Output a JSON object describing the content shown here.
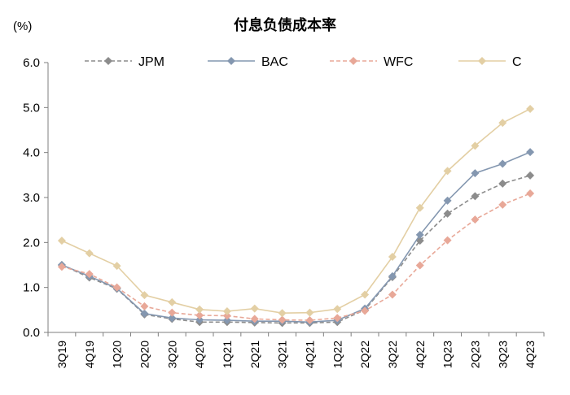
{
  "chart_data": {
    "type": "line",
    "title": "付息负债成本率",
    "unit_label": "(%)",
    "xlabel": "",
    "ylabel": "",
    "ylim": [
      0,
      6
    ],
    "yticks": [
      "0.0",
      "1.0",
      "2.0",
      "3.0",
      "4.0",
      "5.0",
      "6.0"
    ],
    "grid": false,
    "legend_position": "top",
    "categories": [
      "3Q19",
      "4Q19",
      "1Q20",
      "2Q20",
      "3Q20",
      "4Q20",
      "1Q21",
      "2Q21",
      "3Q21",
      "4Q21",
      "1Q22",
      "2Q22",
      "3Q22",
      "4Q22",
      "1Q23",
      "2Q23",
      "3Q23",
      "4Q23"
    ],
    "series": [
      {
        "name": "JPM",
        "color": "#8c8c8c",
        "dash": true,
        "values": [
          1.5,
          1.22,
          0.97,
          0.4,
          0.3,
          0.23,
          0.23,
          0.22,
          0.21,
          0.21,
          0.23,
          0.5,
          1.23,
          2.04,
          2.64,
          3.03,
          3.31,
          3.49
        ]
      },
      {
        "name": "BAC",
        "color": "#8497b0",
        "dash": false,
        "values": [
          1.5,
          1.25,
          0.98,
          0.42,
          0.32,
          0.28,
          0.27,
          0.25,
          0.25,
          0.23,
          0.27,
          0.53,
          1.25,
          2.17,
          2.93,
          3.54,
          3.75,
          4.01
        ]
      },
      {
        "name": "WFC",
        "color": "#e8a898",
        "dash": true,
        "values": [
          1.46,
          1.3,
          1.0,
          0.58,
          0.44,
          0.38,
          0.37,
          0.3,
          0.28,
          0.27,
          0.32,
          0.48,
          0.84,
          1.49,
          2.05,
          2.51,
          2.84,
          3.09
        ]
      },
      {
        "name": "C",
        "color": "#e3cfa4",
        "dash": false,
        "values": [
          2.04,
          1.76,
          1.48,
          0.83,
          0.67,
          0.51,
          0.47,
          0.53,
          0.43,
          0.44,
          0.52,
          0.84,
          1.68,
          2.77,
          3.59,
          4.15,
          4.66,
          4.97
        ]
      }
    ]
  }
}
